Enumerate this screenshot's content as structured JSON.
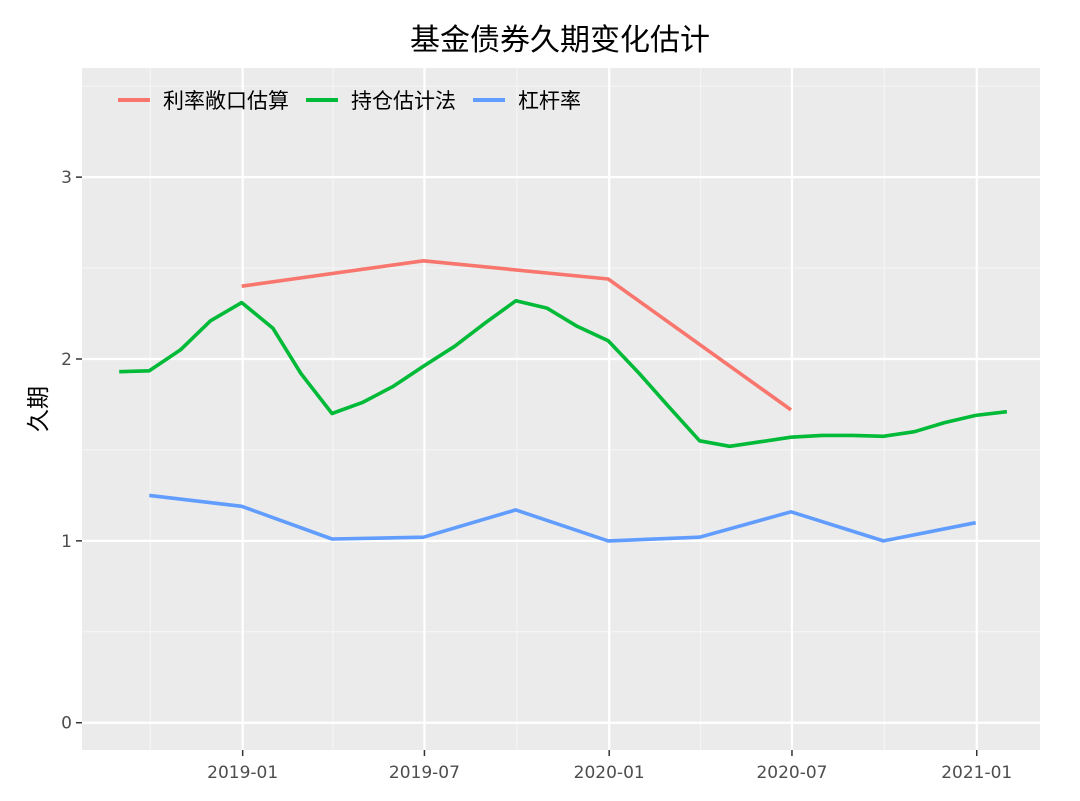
{
  "chart_data": {
    "type": "line",
    "title": "基金债券久期变化估计",
    "xlabel": "",
    "ylabel": "久期",
    "x_ticks": [
      "2019-01",
      "2019-07",
      "2020-01",
      "2020-07",
      "2021-01"
    ],
    "y_ticks": [
      "0",
      "1",
      "2",
      "3"
    ],
    "ylim": [
      -0.15,
      3.6
    ],
    "xlim": [
      "2018-07-25",
      "2021-03-05"
    ],
    "grid": true,
    "legend_position": "top-left",
    "series": [
      {
        "name": "利率敞口估算",
        "color": "#F8766D",
        "points": [
          {
            "x": "2018-12-31",
            "y": 2.4
          },
          {
            "x": "2019-06-30",
            "y": 2.54
          },
          {
            "x": "2019-12-31",
            "y": 2.44
          },
          {
            "x": "2020-06-30",
            "y": 1.72
          }
        ]
      },
      {
        "name": "持仓估计法",
        "color": "#00BA38",
        "points": [
          {
            "x": "2018-08-31",
            "y": 1.93
          },
          {
            "x": "2018-09-30",
            "y": 1.935
          },
          {
            "x": "2018-10-31",
            "y": 2.05
          },
          {
            "x": "2018-11-30",
            "y": 2.21
          },
          {
            "x": "2018-12-31",
            "y": 2.31
          },
          {
            "x": "2019-01-31",
            "y": 2.17
          },
          {
            "x": "2019-02-28",
            "y": 1.92
          },
          {
            "x": "2019-03-31",
            "y": 1.7
          },
          {
            "x": "2019-04-30",
            "y": 1.76
          },
          {
            "x": "2019-05-31",
            "y": 1.85
          },
          {
            "x": "2019-06-30",
            "y": 1.96
          },
          {
            "x": "2019-07-31",
            "y": 2.07
          },
          {
            "x": "2019-08-31",
            "y": 2.2
          },
          {
            "x": "2019-09-30",
            "y": 2.32
          },
          {
            "x": "2019-10-31",
            "y": 2.28
          },
          {
            "x": "2019-11-30",
            "y": 2.18
          },
          {
            "x": "2019-12-31",
            "y": 2.1
          },
          {
            "x": "2020-01-31",
            "y": 1.92
          },
          {
            "x": "2020-02-29",
            "y": 1.74
          },
          {
            "x": "2020-03-31",
            "y": 1.55
          },
          {
            "x": "2020-04-30",
            "y": 1.52
          },
          {
            "x": "2020-05-31",
            "y": 1.545
          },
          {
            "x": "2020-06-30",
            "y": 1.57
          },
          {
            "x": "2020-07-31",
            "y": 1.58
          },
          {
            "x": "2020-08-31",
            "y": 1.58
          },
          {
            "x": "2020-09-30",
            "y": 1.575
          },
          {
            "x": "2020-10-31",
            "y": 1.6
          },
          {
            "x": "2020-11-30",
            "y": 1.65
          },
          {
            "x": "2020-12-31",
            "y": 1.69
          },
          {
            "x": "2021-01-31",
            "y": 1.71
          }
        ]
      },
      {
        "name": "杠杆率",
        "color": "#619CFF",
        "points": [
          {
            "x": "2018-09-30",
            "y": 1.25
          },
          {
            "x": "2018-12-31",
            "y": 1.19
          },
          {
            "x": "2019-03-31",
            "y": 1.01
          },
          {
            "x": "2019-06-30",
            "y": 1.02
          },
          {
            "x": "2019-09-30",
            "y": 1.17
          },
          {
            "x": "2019-12-31",
            "y": 1.0
          },
          {
            "x": "2020-03-31",
            "y": 1.02
          },
          {
            "x": "2020-06-30",
            "y": 1.16
          },
          {
            "x": "2020-09-30",
            "y": 1.0
          },
          {
            "x": "2020-12-31",
            "y": 1.1
          }
        ]
      }
    ]
  }
}
